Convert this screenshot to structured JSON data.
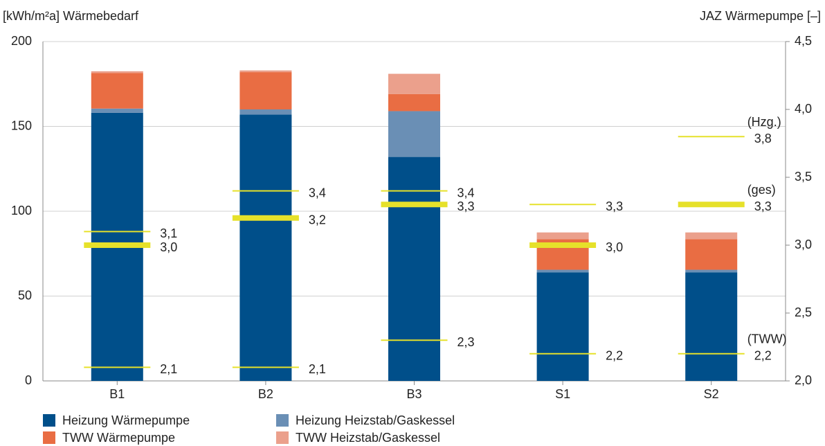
{
  "chart_data": {
    "type": "bar",
    "y_label": "[kWh/m²a] Wärmebedarf",
    "y2_label": "JAZ Wärmepumpe [–]",
    "categories": [
      "B1",
      "B2",
      "B3",
      "S1",
      "S2"
    ],
    "ylim": [
      0,
      200
    ],
    "yticks": [
      0,
      50,
      100,
      150,
      200
    ],
    "y2lim": [
      2.0,
      4.5
    ],
    "y2ticks": [
      {
        "value": 2.0,
        "label": "2,0"
      },
      {
        "value": 2.5,
        "label": "2,5"
      },
      {
        "value": 3.0,
        "label": "3,0"
      },
      {
        "value": 3.5,
        "label": "3,5"
      },
      {
        "value": 4.0,
        "label": "4,0"
      },
      {
        "value": 4.5,
        "label": "4,5"
      }
    ],
    "grid": true,
    "series": [
      {
        "name": "Heizung Wärmepumpe",
        "color": "#004f8a",
        "values": [
          158,
          157,
          132,
          64,
          64
        ]
      },
      {
        "name": "Heizung Heizstab/Gaskessel",
        "color": "#6a8fb5",
        "values": [
          2.5,
          3,
          27,
          1.5,
          1.5
        ]
      },
      {
        "name": "TWW Wärmepumpe",
        "color": "#e96d43",
        "values": [
          21,
          22,
          10,
          18,
          18
        ]
      },
      {
        "name": "TWW Heizstab/Gaskessel",
        "color": "#eba08c",
        "values": [
          1,
          1,
          12,
          4,
          4
        ]
      }
    ],
    "jaz_series": [
      {
        "name": "(Hzg.)",
        "axis": "y2",
        "color": "#e6e12a",
        "width": 2,
        "values": [
          3.1,
          3.4,
          3.4,
          3.3,
          3.8
        ],
        "value_labels": [
          "3,1",
          "3,4",
          "3,4",
          "3,3",
          "3,8"
        ]
      },
      {
        "name": "(ges)",
        "axis": "y2",
        "color": "#e6e12a",
        "width": 8,
        "values": [
          3.0,
          3.2,
          3.3,
          3.0,
          3.3
        ],
        "value_labels": [
          "3,0",
          "3,2",
          "3,3",
          "3,0",
          "3,3"
        ]
      },
      {
        "name": "(TWW)",
        "axis": "y2",
        "color": "#e6e12a",
        "width": 2,
        "values": [
          2.1,
          2.1,
          2.3,
          2.2,
          2.2
        ],
        "value_labels": [
          "2,1",
          "2,1",
          "2,3",
          "2,2",
          "2,2"
        ]
      }
    ]
  }
}
